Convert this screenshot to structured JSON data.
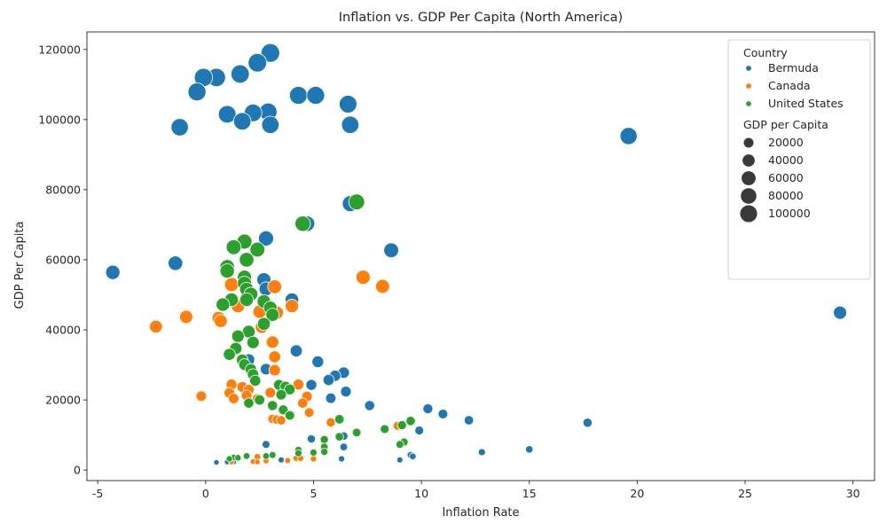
{
  "chart_data": {
    "type": "scatter",
    "title": "Inflation vs. GDP Per Capita (North America)",
    "xlabel": "Inflation Rate",
    "ylabel": "GDP Per Capita",
    "xlim": [
      -5.5,
      31
    ],
    "ylim": [
      -3000,
      125000
    ],
    "xticks": [
      -5,
      0,
      5,
      10,
      15,
      20,
      25,
      30
    ],
    "yticks": [
      0,
      20000,
      40000,
      60000,
      80000,
      100000,
      120000
    ],
    "grid": false,
    "legend_position": "top-right",
    "hue_title": "Country",
    "size_title": "GDP per Capita",
    "size_legend_values": [
      20000,
      40000,
      60000,
      80000,
      100000
    ],
    "size_legend_labels": [
      "20000",
      "40000",
      "60000",
      "80000",
      "100000"
    ],
    "series": [
      {
        "name": "Bermuda",
        "color": "#1f77b4",
        "points": [
          [
            3.0,
            119000
          ],
          [
            2.4,
            116200
          ],
          [
            1.6,
            113000
          ],
          [
            0.5,
            112000
          ],
          [
            -0.1,
            112000
          ],
          [
            -0.4,
            107900
          ],
          [
            4.3,
            106900
          ],
          [
            5.1,
            106900
          ],
          [
            6.6,
            104400
          ],
          [
            2.9,
            102200
          ],
          [
            2.2,
            101900
          ],
          [
            1.0,
            101500
          ],
          [
            1.7,
            99500
          ],
          [
            3.0,
            98500
          ],
          [
            6.7,
            98500
          ],
          [
            -1.2,
            97800
          ],
          [
            19.6,
            95300
          ],
          [
            6.7,
            76000
          ],
          [
            4.7,
            70300
          ],
          [
            2.8,
            66100
          ],
          [
            8.6,
            62700
          ],
          [
            -1.4,
            59000
          ],
          [
            -4.3,
            56400
          ],
          [
            2.7,
            54300
          ],
          [
            2.8,
            51700
          ],
          [
            4.0,
            48600
          ],
          [
            29.4,
            44900
          ],
          [
            3.3,
            44700
          ],
          [
            4.2,
            34000
          ],
          [
            2.0,
            31500
          ],
          [
            5.2,
            30900
          ],
          [
            2.8,
            28800
          ],
          [
            6.4,
            27800
          ],
          [
            6.0,
            26900
          ],
          [
            5.7,
            25700
          ],
          [
            4.9,
            24300
          ],
          [
            6.5,
            22400
          ],
          [
            5.8,
            20500
          ],
          [
            7.6,
            18400
          ],
          [
            10.3,
            17500
          ],
          [
            11.0,
            16000
          ],
          [
            12.2,
            14200
          ],
          [
            17.7,
            13500
          ],
          [
            9.9,
            11300
          ],
          [
            6.4,
            9700
          ],
          [
            4.9,
            8900
          ],
          [
            2.8,
            7300
          ],
          [
            6.4,
            6600
          ],
          [
            15.0,
            5900
          ],
          [
            12.8,
            5100
          ],
          [
            9.5,
            4300
          ],
          [
            9.6,
            3900
          ],
          [
            6.3,
            3200
          ],
          [
            9.0,
            2900
          ],
          [
            3.5,
            2900
          ],
          [
            1.0,
            2300
          ],
          [
            0.5,
            2200
          ],
          [
            1.3,
            2300
          ]
        ]
      },
      {
        "name": "Canada",
        "color": "#ff7f0e",
        "points": [
          [
            7.3,
            55000
          ],
          [
            1.2,
            52900
          ],
          [
            3.2,
            52300
          ],
          [
            8.2,
            52400
          ],
          [
            4.0,
            46800
          ],
          [
            1.5,
            46800
          ],
          [
            3.3,
            44900
          ],
          [
            2.5,
            45200
          ],
          [
            -0.9,
            43700
          ],
          [
            0.6,
            43400
          ],
          [
            0.7,
            42500
          ],
          [
            2.6,
            40800
          ],
          [
            -2.3,
            40900
          ],
          [
            3.1,
            36500
          ],
          [
            3.2,
            32300
          ],
          [
            3.2,
            28500
          ],
          [
            1.2,
            24400
          ],
          [
            1.7,
            23700
          ],
          [
            4.3,
            24400
          ],
          [
            2.0,
            22900
          ],
          [
            3.0,
            22100
          ],
          [
            1.1,
            22000
          ],
          [
            1.9,
            21300
          ],
          [
            -0.2,
            21100
          ],
          [
            4.7,
            21000
          ],
          [
            1.3,
            20400
          ],
          [
            2.4,
            20300
          ],
          [
            4.5,
            19100
          ],
          [
            4.8,
            16400
          ],
          [
            3.1,
            14600
          ],
          [
            3.3,
            14400
          ],
          [
            3.5,
            14200
          ],
          [
            5.8,
            13600
          ],
          [
            8.9,
            12600
          ],
          [
            2.4,
            3800
          ],
          [
            4.2,
            3400
          ],
          [
            4.4,
            3400
          ],
          [
            5.0,
            3200
          ],
          [
            2.8,
            2600
          ],
          [
            3.8,
            2700
          ],
          [
            2.2,
            2400
          ],
          [
            2.4,
            2300
          ],
          [
            1.2,
            2300
          ]
        ]
      },
      {
        "name": "United States",
        "color": "#2ca02c",
        "points": [
          [
            7.0,
            76500
          ],
          [
            4.5,
            70300
          ],
          [
            1.8,
            65200
          ],
          [
            1.3,
            63600
          ],
          [
            2.4,
            62900
          ],
          [
            1.9,
            60000
          ],
          [
            1.0,
            58000
          ],
          [
            1.0,
            56800
          ],
          [
            1.8,
            55000
          ],
          [
            1.8,
            53300
          ],
          [
            1.9,
            51600
          ],
          [
            2.1,
            50200
          ],
          [
            1.2,
            48600
          ],
          [
            1.9,
            48600
          ],
          [
            2.7,
            48100
          ],
          [
            0.8,
            47200
          ],
          [
            3.0,
            46300
          ],
          [
            3.1,
            44300
          ],
          [
            2.7,
            41700
          ],
          [
            2.0,
            39500
          ],
          [
            1.5,
            38200
          ],
          [
            2.2,
            36400
          ],
          [
            1.4,
            34700
          ],
          [
            1.1,
            33000
          ],
          [
            1.7,
            31400
          ],
          [
            1.8,
            30100
          ],
          [
            2.1,
            28700
          ],
          [
            2.2,
            27300
          ],
          [
            2.3,
            25500
          ],
          [
            3.4,
            24300
          ],
          [
            3.7,
            23800
          ],
          [
            3.9,
            23000
          ],
          [
            3.5,
            21500
          ],
          [
            2.5,
            20000
          ],
          [
            2.0,
            19100
          ],
          [
            3.1,
            18400
          ],
          [
            3.6,
            17200
          ],
          [
            3.9,
            15600
          ],
          [
            6.2,
            14500
          ],
          [
            9.5,
            14000
          ],
          [
            9.1,
            12800
          ],
          [
            8.3,
            11700
          ],
          [
            7.0,
            10700
          ],
          [
            6.2,
            9500
          ],
          [
            5.5,
            8700
          ],
          [
            9.2,
            8000
          ],
          [
            9.0,
            7300
          ],
          [
            5.5,
            6600
          ],
          [
            4.3,
            5700
          ],
          [
            5.5,
            5200
          ],
          [
            5.0,
            5000
          ],
          [
            4.3,
            4800
          ],
          [
            3.1,
            4300
          ],
          [
            1.9,
            4000
          ],
          [
            1.3,
            3600
          ],
          [
            2.8,
            4000
          ],
          [
            1.5,
            3500
          ],
          [
            1.1,
            3200
          ]
        ]
      }
    ]
  }
}
